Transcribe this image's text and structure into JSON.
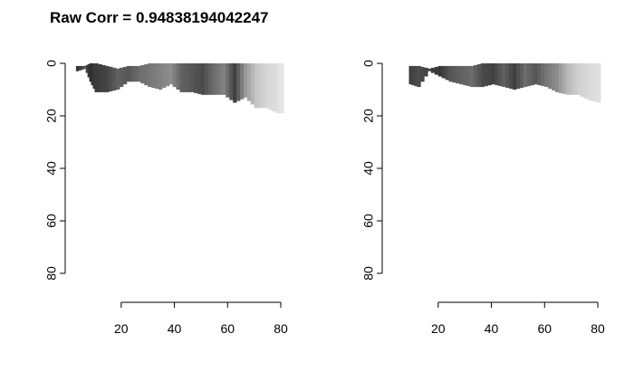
{
  "title": "Raw Corr = 0.94838194042247",
  "chart_data": [
    {
      "type": "heatmap",
      "title": "Raw Corr = 0.94838194042247",
      "xlim": [
        1,
        80
      ],
      "ylim": [
        80,
        0
      ],
      "x_ticks": [
        20,
        40,
        60,
        80
      ],
      "y_ticks": [
        0,
        20,
        40,
        60,
        80
      ],
      "colormap": "grayscale",
      "profile": [
        {
          "x": 3,
          "top": 1,
          "bottom": 3,
          "v": 0.15
        },
        {
          "x": 6,
          "top": 1,
          "bottom": 2,
          "v": 0.25
        },
        {
          "x": 8,
          "top": 0,
          "bottom": 7,
          "v": 0.12
        },
        {
          "x": 10,
          "top": 0,
          "bottom": 11,
          "v": 0.18
        },
        {
          "x": 14,
          "top": 1,
          "bottom": 11,
          "v": 0.22
        },
        {
          "x": 18,
          "top": 2,
          "bottom": 10,
          "v": 0.35
        },
        {
          "x": 22,
          "top": 1,
          "bottom": 7,
          "v": 0.3
        },
        {
          "x": 26,
          "top": 1,
          "bottom": 7,
          "v": 0.4
        },
        {
          "x": 30,
          "top": 0,
          "bottom": 9,
          "v": 0.45
        },
        {
          "x": 34,
          "top": 0,
          "bottom": 10,
          "v": 0.5
        },
        {
          "x": 38,
          "top": 0,
          "bottom": 8,
          "v": 0.55
        },
        {
          "x": 42,
          "top": 0,
          "bottom": 11,
          "v": 0.35
        },
        {
          "x": 46,
          "top": 0,
          "bottom": 11,
          "v": 0.3
        },
        {
          "x": 50,
          "top": 0,
          "bottom": 12,
          "v": 0.25
        },
        {
          "x": 54,
          "top": 0,
          "bottom": 12,
          "v": 0.4
        },
        {
          "x": 58,
          "top": 0,
          "bottom": 12,
          "v": 0.5
        },
        {
          "x": 62,
          "top": 0,
          "bottom": 15,
          "v": 0.2
        },
        {
          "x": 66,
          "top": 0,
          "bottom": 13,
          "v": 0.6
        },
        {
          "x": 70,
          "top": 0,
          "bottom": 17,
          "v": 0.8
        },
        {
          "x": 74,
          "top": 0,
          "bottom": 17,
          "v": 0.88
        },
        {
          "x": 78,
          "top": 0,
          "bottom": 19,
          "v": 0.92
        },
        {
          "x": 80,
          "top": 0,
          "bottom": 19,
          "v": 0.95
        }
      ]
    },
    {
      "type": "heatmap",
      "xlim": [
        1,
        80
      ],
      "ylim": [
        80,
        0
      ],
      "x_ticks": [
        20,
        40,
        60,
        80
      ],
      "y_ticks": [
        0,
        20,
        40,
        60,
        80
      ],
      "colormap": "grayscale",
      "profile": [
        {
          "x": 9,
          "top": 1,
          "bottom": 8,
          "v": 0.2
        },
        {
          "x": 12,
          "top": 1,
          "bottom": 9,
          "v": 0.25
        },
        {
          "x": 16,
          "top": 2,
          "bottom": 3,
          "v": 0.2
        },
        {
          "x": 20,
          "top": 1,
          "bottom": 5,
          "v": 0.15
        },
        {
          "x": 24,
          "top": 1,
          "bottom": 7,
          "v": 0.3
        },
        {
          "x": 28,
          "top": 1,
          "bottom": 8,
          "v": 0.35
        },
        {
          "x": 32,
          "top": 1,
          "bottom": 9,
          "v": 0.4
        },
        {
          "x": 36,
          "top": 0,
          "bottom": 9,
          "v": 0.25
        },
        {
          "x": 40,
          "top": 0,
          "bottom": 8,
          "v": 0.2
        },
        {
          "x": 44,
          "top": 0,
          "bottom": 9,
          "v": 0.35
        },
        {
          "x": 48,
          "top": 0,
          "bottom": 10,
          "v": 0.2
        },
        {
          "x": 52,
          "top": 0,
          "bottom": 9,
          "v": 0.4
        },
        {
          "x": 56,
          "top": 0,
          "bottom": 8,
          "v": 0.3
        },
        {
          "x": 60,
          "top": 0,
          "bottom": 9,
          "v": 0.45
        },
        {
          "x": 64,
          "top": 0,
          "bottom": 11,
          "v": 0.55
        },
        {
          "x": 68,
          "top": 0,
          "bottom": 12,
          "v": 0.75
        },
        {
          "x": 72,
          "top": 0,
          "bottom": 12,
          "v": 0.85
        },
        {
          "x": 76,
          "top": 0,
          "bottom": 14,
          "v": 0.9
        },
        {
          "x": 80,
          "top": 0,
          "bottom": 15,
          "v": 0.93
        }
      ]
    }
  ]
}
